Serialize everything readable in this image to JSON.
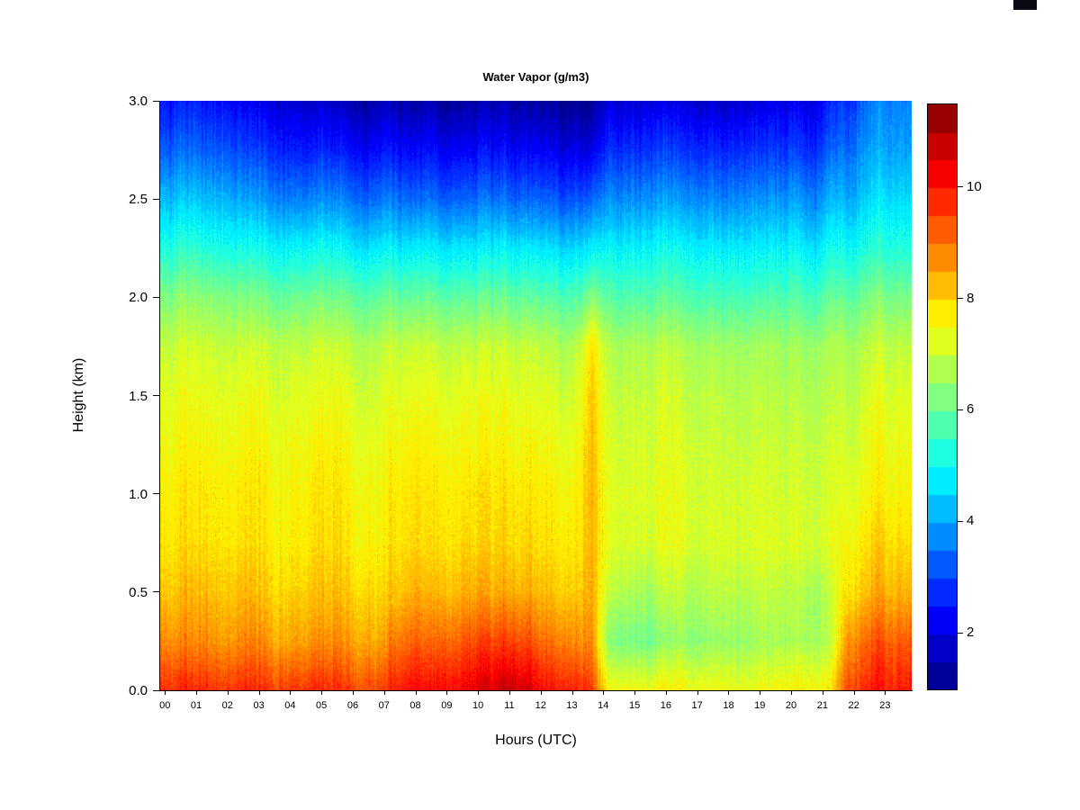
{
  "title": "Water Vapor (g/m3)",
  "xlabel": "Hours (UTC)",
  "ylabel": "Height (km)",
  "colors": {
    "background": "#ffffff",
    "text": "#000000"
  },
  "axes": {
    "x_tick_labels": [
      "00",
      "01",
      "02",
      "03",
      "04",
      "05",
      "06",
      "07",
      "08",
      "09",
      "10",
      "11",
      "12",
      "13",
      "14",
      "15",
      "16",
      "17",
      "18",
      "19",
      "20",
      "21",
      "22",
      "23"
    ],
    "x_tick_values": [
      0,
      1,
      2,
      3,
      4,
      5,
      6,
      7,
      8,
      9,
      10,
      11,
      12,
      13,
      14,
      15,
      16,
      17,
      18,
      19,
      20,
      21,
      22,
      23
    ],
    "y_tick_labels": [
      "0.0",
      "0.5",
      "1.0",
      "1.5",
      "2.0",
      "2.5",
      "3.0"
    ],
    "y_tick_values": [
      0,
      0.5,
      1,
      1.5,
      2,
      2.5,
      3
    ],
    "x_range": [
      0,
      24
    ],
    "y_range": [
      0,
      3
    ]
  },
  "colorbar": {
    "tick_labels": [
      "2",
      "4",
      "6",
      "8",
      "10"
    ],
    "tick_values": [
      2,
      4,
      6,
      8,
      10
    ],
    "vmin": 1,
    "vmax": 11.5,
    "segments": 21,
    "palette": "jet"
  },
  "chart_data": {
    "type": "heatmap",
    "title": "Water Vapor (g/m3)",
    "xlabel": "Hours (UTC)",
    "ylabel": "Height (km)",
    "units": "g/m3",
    "vmin": 1,
    "vmax": 11.5,
    "x_hours": [
      0,
      0.5,
      1,
      1.5,
      2,
      2.5,
      3,
      3.5,
      4,
      4.5,
      5,
      5.5,
      6,
      6.5,
      7,
      7.5,
      8,
      8.5,
      9,
      9.5,
      10,
      10.5,
      11,
      11.5,
      12,
      12.5,
      13,
      13.5,
      14,
      14.5,
      15,
      15.5,
      16,
      16.5,
      17,
      17.5,
      18,
      18.5,
      19,
      19.5,
      20,
      20.5,
      21,
      21.5,
      22,
      22.5,
      23,
      23.5
    ],
    "heights_km": [
      0,
      0.25,
      0.5,
      0.75,
      1,
      1.25,
      1.5,
      1.75,
      2,
      2.25,
      2.5,
      2.75,
      3
    ],
    "values": [
      [
        9.9,
        9.8,
        9.7,
        9.8,
        9.6,
        9.7,
        9.8,
        9.7,
        9.6,
        9.7,
        9.8,
        9.6,
        9.5,
        9.6,
        9.7,
        10.0,
        10.1,
        10.0,
        10.2,
        10.3,
        10.6,
        10.8,
        10.9,
        10.6,
        10.2,
        10.0,
        10.0,
        9.6,
        7.6,
        7.5,
        7.4,
        7.5,
        7.5,
        7.6,
        7.6,
        7.5,
        7.6,
        7.5,
        7.6,
        7.7,
        7.6,
        7.5,
        7.8,
        9.6,
        9.9,
        10.0,
        10.0,
        9.9
      ],
      [
        8.9,
        8.8,
        8.7,
        8.8,
        8.6,
        8.7,
        8.8,
        8.6,
        8.5,
        8.6,
        8.7,
        8.6,
        8.5,
        8.6,
        8.7,
        9.0,
        9.1,
        9.0,
        9.2,
        9.3,
        9.5,
        9.6,
        9.6,
        9.4,
        9.1,
        9.0,
        8.9,
        8.8,
        6.4,
        6.2,
        6.1,
        6.2,
        6.3,
        6.5,
        6.6,
        6.6,
        6.7,
        6.7,
        6.8,
        6.8,
        6.7,
        6.6,
        6.9,
        8.8,
        9.2,
        9.3,
        9.3,
        9.2
      ],
      [
        8.3,
        8.2,
        8.2,
        8.3,
        8.1,
        8.2,
        8.2,
        8.1,
        8.0,
        8.1,
        8.2,
        8.1,
        8.0,
        8.1,
        8.1,
        8.2,
        8.3,
        8.2,
        8.3,
        8.4,
        8.5,
        8.5,
        8.5,
        8.4,
        8.3,
        8.2,
        8.2,
        8.5,
        7.0,
        6.8,
        6.6,
        6.7,
        6.8,
        6.9,
        7.0,
        7.0,
        7.1,
        7.0,
        7.1,
        7.0,
        6.8,
        6.6,
        7.0,
        8.0,
        8.3,
        8.4,
        8.4,
        8.3
      ],
      [
        7.9,
        7.9,
        7.8,
        7.9,
        7.8,
        7.8,
        7.9,
        7.8,
        7.7,
        7.8,
        7.9,
        7.8,
        7.7,
        7.8,
        7.8,
        7.9,
        7.9,
        7.8,
        7.9,
        8.0,
        8.0,
        8.1,
        8.0,
        8.0,
        7.9,
        7.9,
        7.9,
        8.4,
        7.3,
        7.2,
        7.1,
        7.2,
        7.2,
        7.3,
        7.3,
        7.3,
        7.4,
        7.3,
        7.4,
        7.3,
        7.2,
        7.1,
        7.3,
        7.7,
        7.9,
        8.0,
        8.0,
        7.9
      ],
      [
        7.8,
        7.8,
        7.7,
        7.8,
        7.7,
        7.7,
        7.8,
        7.7,
        7.6,
        7.7,
        7.8,
        7.7,
        7.6,
        7.7,
        7.7,
        7.8,
        7.8,
        7.7,
        7.8,
        7.8,
        7.9,
        7.9,
        7.9,
        7.8,
        7.8,
        7.7,
        7.8,
        8.4,
        7.3,
        7.2,
        7.2,
        7.2,
        7.2,
        7.3,
        7.3,
        7.2,
        7.3,
        7.3,
        7.3,
        7.2,
        7.1,
        7.0,
        7.2,
        7.4,
        7.6,
        7.7,
        7.7,
        7.6
      ],
      [
        7.6,
        7.6,
        7.5,
        7.6,
        7.5,
        7.5,
        7.6,
        7.5,
        7.5,
        7.5,
        7.6,
        7.5,
        7.4,
        7.5,
        7.5,
        7.6,
        7.6,
        7.5,
        7.6,
        7.6,
        7.6,
        7.7,
        7.6,
        7.6,
        7.5,
        7.5,
        7.5,
        8.3,
        7.2,
        7.1,
        7.1,
        7.1,
        7.1,
        7.2,
        7.2,
        7.1,
        7.2,
        7.1,
        7.2,
        7.1,
        7.0,
        6.9,
        7.1,
        7.2,
        7.4,
        7.5,
        7.5,
        7.4
      ],
      [
        7.4,
        7.4,
        7.3,
        7.4,
        7.3,
        7.3,
        7.4,
        7.3,
        7.2,
        7.3,
        7.3,
        7.3,
        7.2,
        7.2,
        7.3,
        7.3,
        7.3,
        7.3,
        7.3,
        7.4,
        7.4,
        7.4,
        7.4,
        7.3,
        7.3,
        7.2,
        7.3,
        8.2,
        7.0,
        7.0,
        6.9,
        7.0,
        7.0,
        7.0,
        7.1,
        7.0,
        7.0,
        7.0,
        7.0,
        6.9,
        6.8,
        6.7,
        6.9,
        7.0,
        7.2,
        7.3,
        7.3,
        7.2
      ],
      [
        7.1,
        7.1,
        7.0,
        7.1,
        7.0,
        7.0,
        7.0,
        7.0,
        6.9,
        6.9,
        7.0,
        6.9,
        6.9,
        6.9,
        7.0,
        7.0,
        7.0,
        6.9,
        7.0,
        7.0,
        7.0,
        7.1,
        7.0,
        7.0,
        6.9,
        6.9,
        6.9,
        7.9,
        6.8,
        6.7,
        6.7,
        6.7,
        6.7,
        6.8,
        6.8,
        6.7,
        6.8,
        6.7,
        6.8,
        6.7,
        6.6,
        6.5,
        6.7,
        6.8,
        6.9,
        7.0,
        7.0,
        6.9
      ],
      [
        6.4,
        6.4,
        6.3,
        6.4,
        6.3,
        6.2,
        6.2,
        6.1,
        6.0,
        6.1,
        6.1,
        6.0,
        6.0,
        6.0,
        6.1,
        6.0,
        6.0,
        5.9,
        6.0,
        6.0,
        6.0,
        6.1,
        6.0,
        6.0,
        5.9,
        5.9,
        5.9,
        6.4,
        5.9,
        5.8,
        5.8,
        5.8,
        5.8,
        5.9,
        5.9,
        5.8,
        5.9,
        5.8,
        5.9,
        5.9,
        5.8,
        5.6,
        6.0,
        6.0,
        6.2,
        6.3,
        6.3,
        6.2
      ],
      [
        5.4,
        5.4,
        5.3,
        5.3,
        5.2,
        5.1,
        5.1,
        5.0,
        4.9,
        4.9,
        5.0,
        4.9,
        4.8,
        4.8,
        4.9,
        4.8,
        4.8,
        4.7,
        4.8,
        4.8,
        4.8,
        4.9,
        4.8,
        4.8,
        4.7,
        4.7,
        4.7,
        4.9,
        4.9,
        4.9,
        4.8,
        4.9,
        4.9,
        5.0,
        5.0,
        4.9,
        5.0,
        4.9,
        5.0,
        5.0,
        4.9,
        4.6,
        5.1,
        5.1,
        5.3,
        5.4,
        5.4,
        5.3
      ],
      [
        4.4,
        4.4,
        4.3,
        4.3,
        4.2,
        4.0,
        3.9,
        3.8,
        3.6,
        3.6,
        3.7,
        3.6,
        3.5,
        3.5,
        3.6,
        3.5,
        3.4,
        3.4,
        3.4,
        3.4,
        3.5,
        3.5,
        3.4,
        3.4,
        3.3,
        3.3,
        3.3,
        3.4,
        3.8,
        3.8,
        3.7,
        3.8,
        3.8,
        3.9,
        3.9,
        3.8,
        3.9,
        3.9,
        4.0,
        4.0,
        3.9,
        3.6,
        4.2,
        4.2,
        4.5,
        4.7,
        4.7,
        4.6
      ],
      [
        3.4,
        3.4,
        3.3,
        3.3,
        3.2,
        3.0,
        2.9,
        2.8,
        2.6,
        2.5,
        2.6,
        2.5,
        2.4,
        2.4,
        2.5,
        2.4,
        2.3,
        2.3,
        2.3,
        2.3,
        2.4,
        2.4,
        2.3,
        2.3,
        2.2,
        2.2,
        2.2,
        2.1,
        2.8,
        2.8,
        2.7,
        2.8,
        2.8,
        2.9,
        2.9,
        2.8,
        2.9,
        2.9,
        3.0,
        3.0,
        2.9,
        2.7,
        3.3,
        3.5,
        3.9,
        4.1,
        4.1,
        4.0
      ],
      [
        2.6,
        2.6,
        2.5,
        2.5,
        2.4,
        2.2,
        2.1,
        2.0,
        1.8,
        1.7,
        1.7,
        1.6,
        1.5,
        1.5,
        1.6,
        1.5,
        1.4,
        1.4,
        1.4,
        1.4,
        1.5,
        1.5,
        1.4,
        1.4,
        1.3,
        1.3,
        1.3,
        1.2,
        1.9,
        1.9,
        1.8,
        1.9,
        1.9,
        2.0,
        2.0,
        1.9,
        2.0,
        2.0,
        2.2,
        2.2,
        2.1,
        2.0,
        2.6,
        2.9,
        3.4,
        3.7,
        3.8,
        3.7
      ]
    ]
  }
}
